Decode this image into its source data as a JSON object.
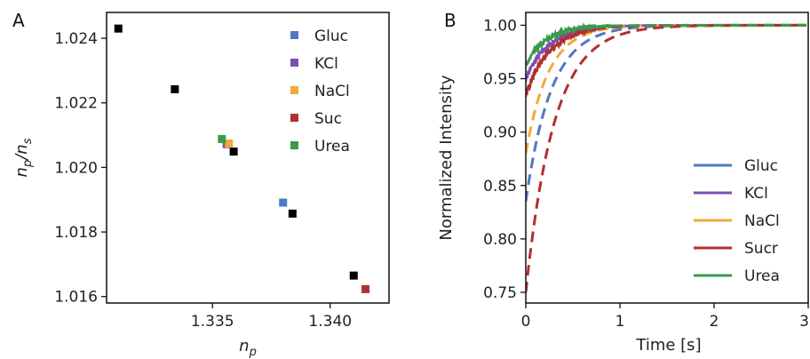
{
  "chart_data": [
    {
      "panel": "A",
      "type": "scatter",
      "xlabel": "n_p",
      "ylabel": "n_p/n_s",
      "xlim": [
        1.3305,
        1.3425
      ],
      "ylim": [
        1.0158,
        1.0248
      ],
      "xticks": [
        1.335,
        1.34
      ],
      "xtick_labels": [
        "1.335",
        "1.340"
      ],
      "yticks": [
        1.016,
        1.018,
        1.02,
        1.022,
        1.024
      ],
      "ytick_labels": [
        "1.016",
        "1.018",
        "1.020",
        "1.022",
        "1.024"
      ],
      "legend_position": "top-right",
      "series": [
        {
          "color": "#000000",
          "x": [
            1.331,
            1.3334,
            1.3359,
            1.3384,
            1.341
          ],
          "y": [
            1.0243,
            1.02242,
            1.02049,
            1.01857,
            1.01665
          ]
        },
        {
          "name": "Gluc",
          "color": "#4f78c4",
          "x": [
            1.338
          ],
          "y": [
            1.01891
          ]
        },
        {
          "name": "KCl",
          "color": "#7b4fb3",
          "x": [
            1.3356
          ],
          "y": [
            1.02072
          ]
        },
        {
          "name": "NaCl",
          "color": "#f2a93a",
          "x": [
            1.3357
          ],
          "y": [
            1.02074
          ]
        },
        {
          "name": "Suc",
          "color": "#b22f2f",
          "x": [
            1.3415
          ],
          "y": [
            1.01623
          ]
        },
        {
          "name": "Urea",
          "color": "#3a9a4c",
          "x": [
            1.3354
          ],
          "y": [
            1.02088
          ]
        }
      ]
    },
    {
      "panel": "B",
      "type": "line",
      "xlabel": "Time [s]",
      "ylabel": "Normalized Intensity",
      "xlim": [
        0,
        3
      ],
      "ylim": [
        0.74,
        1.012
      ],
      "xticks": [
        0,
        1,
        2,
        3
      ],
      "xtick_labels": [
        "0",
        "1",
        "2",
        "3"
      ],
      "yticks": [
        0.75,
        0.8,
        0.85,
        0.9,
        0.95,
        1.0
      ],
      "ytick_labels": [
        "0.75",
        "0.80",
        "0.85",
        "0.90",
        "0.95",
        "1.00"
      ],
      "legend_position": "bottom-right",
      "series": [
        {
          "name": "Gluc",
          "color": "#4f78c4",
          "i0": 0.835,
          "tau": 0.27,
          "noisy_until": 0.0
        },
        {
          "name": "KCl",
          "color": "#7b4fb3",
          "i0": 0.95,
          "tau": 0.25,
          "noisy_until": 0.78
        },
        {
          "name": "NaCl",
          "color": "#f2a93a",
          "i0": 0.88,
          "tau": 0.24,
          "noisy_until": 0.0
        },
        {
          "name": "Sucr",
          "color": "#b22f2f",
          "i0": 0.75,
          "tau": 0.3,
          "noisy_until": 0.0
        },
        {
          "name": "Sucr-fast",
          "color": "#b22f2f",
          "i0": 0.935,
          "tau": 0.26,
          "noisy_until": 0.78
        },
        {
          "name": "Urea",
          "color": "#3a9a4c",
          "i0": 0.962,
          "tau": 0.22,
          "noisy_until": 0.95
        }
      ],
      "legend": [
        "Gluc",
        "KCl",
        "NaCl",
        "Sucr",
        "Urea"
      ]
    }
  ],
  "panel_labels": {
    "a": "A",
    "b": "B"
  }
}
